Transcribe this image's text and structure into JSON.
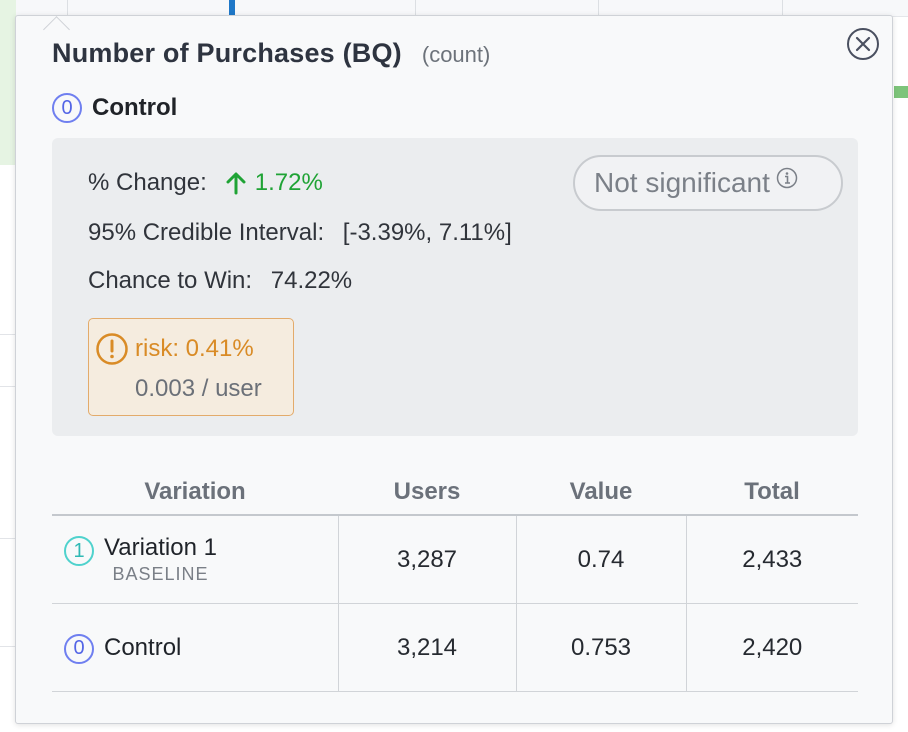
{
  "tooltip": {
    "title": "Number of Purchases (BQ)",
    "subtitle": "(count)",
    "close_icon": "close-circle-icon",
    "variation": {
      "index": "0",
      "name": "Control"
    },
    "stats": {
      "change_label": "% Change:",
      "change_value": "1.72%",
      "change_direction_icon": "arrow-up-icon",
      "ci_label": "95% Credible Interval:",
      "ci_value": "[-3.39%, 7.11%]",
      "ctw_label": "Chance to Win:",
      "ctw_value": "74.22%",
      "significance": "Not significant",
      "significance_icon": "info-icon",
      "risk_icon": "exclamation-circle-icon",
      "risk": "risk: 0.41%",
      "risk_per_user": "0.003 / user"
    },
    "table": {
      "headers": [
        "Variation",
        "Users",
        "Value",
        "Total"
      ],
      "rows": [
        {
          "index": "1",
          "variation": "Variation 1",
          "tag": "BASELINE",
          "users": "3,287",
          "value": "0.74",
          "total": "2,433"
        },
        {
          "index": "0",
          "variation": "Control",
          "tag": "",
          "users": "3,214",
          "value": "0.753",
          "total": "2,420"
        }
      ]
    }
  },
  "colors": {
    "positive": "#1fa335",
    "risk": "#d98b26",
    "variation_0": "#5365e6",
    "variation_1": "#2fb9b4"
  }
}
